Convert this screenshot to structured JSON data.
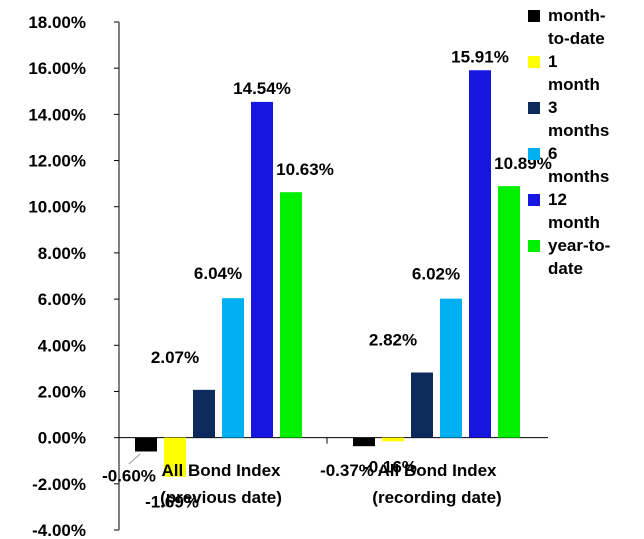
{
  "chart_data": {
    "type": "bar",
    "categories": [
      "All Bond Index\n(previous date)",
      "All Bond Index\n(recording date)"
    ],
    "series": [
      {
        "name": "month-to-date",
        "color": "#000000",
        "values": [
          -0.6,
          -0.37
        ]
      },
      {
        "name": "1 month",
        "color": "#ffff00",
        "values": [
          -1.69,
          -0.16
        ]
      },
      {
        "name": "3 months",
        "color": "#0c2a5c",
        "values": [
          2.07,
          2.82
        ]
      },
      {
        "name": "6 months",
        "color": "#00b0f0",
        "values": [
          6.04,
          6.02
        ]
      },
      {
        "name": "12 month",
        "color": "#1616e0",
        "values": [
          14.54,
          15.91
        ]
      },
      {
        "name": "year-to-date",
        "color": "#00f000",
        "values": [
          10.63,
          10.89
        ]
      }
    ],
    "data_labels": [
      [
        "-0.60%",
        "-1.69%",
        "2.07%",
        "6.04%",
        "14.54%",
        "10.63%"
      ],
      [
        "-0.37%",
        "-0.16%",
        "2.82%",
        "6.02%",
        "15.91%",
        "10.89%"
      ]
    ],
    "yticks": [
      "18.00%",
      "16.00%",
      "14.00%",
      "12.00%",
      "10.00%",
      "8.00%",
      "6.00%",
      "4.00%",
      "2.00%",
      "0.00%",
      "-2.00%",
      "-4.00%"
    ],
    "ylim": [
      -4,
      18
    ],
    "legend_position": "right",
    "grid": false
  }
}
